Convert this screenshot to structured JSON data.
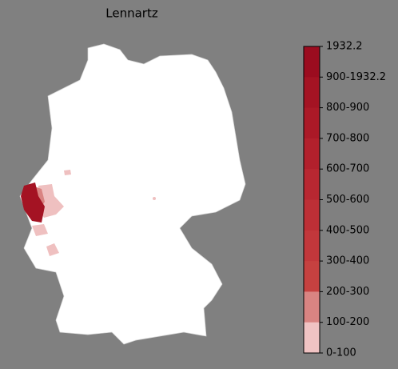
{
  "title": "Lennartz",
  "colorbar": {
    "labels": [
      "1932.2",
      "900-1932.2",
      "800-900",
      "700-800",
      "600-700",
      "500-600",
      "400-500",
      "300-400",
      "200-300",
      "100-200",
      "0-100"
    ],
    "colors": [
      "#9b0c1f",
      "#a41323",
      "#ab1927",
      "#b2202c",
      "#b82731",
      "#bd2f36",
      "#c2373b",
      "#c64140",
      "#d98482",
      "#f0c3c3",
      "#ffffff"
    ]
  }
}
